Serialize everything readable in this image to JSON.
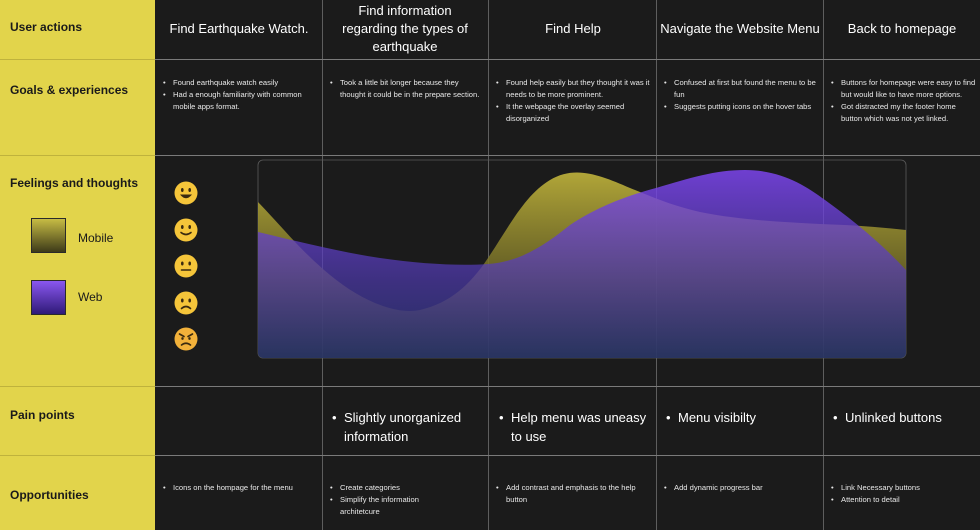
{
  "rows": {
    "user_actions": "User actions",
    "goals": "Goals & experiences",
    "feelings": "Feelings and thoughts",
    "pain_points": "Pain points",
    "opportunities": "Opportunities"
  },
  "legend": {
    "mobile": {
      "label": "Mobile",
      "color": "#6e6a24"
    },
    "web": {
      "label": "Web",
      "color": "#6a3fd6"
    }
  },
  "emotion_scale": [
    "very-happy",
    "happy",
    "neutral",
    "sad",
    "angry"
  ],
  "columns": [
    {
      "action": "Find Earthquake Watch.",
      "goals": [
        "Found earthquake watch easily",
        "Had a enough familiarity with common mobile apps format."
      ],
      "pain_points": [],
      "opportunities": [
        "Icons on the hompage for the menu"
      ]
    },
    {
      "action": "Find information regarding the types of earthquake",
      "goals": [
        "Took a little bit longer because they thought it could be in the prepare section."
      ],
      "pain_points": [
        "Slightly unorganized information"
      ],
      "opportunities": [
        "Create categories",
        "Simplify the information architetcure"
      ]
    },
    {
      "action": "Find Help",
      "goals": [
        "Found help easily but they thought it was it needs to be more prominent.",
        "It the webpage the overlay seemed disorganized"
      ],
      "pain_points": [
        "Help menu was uneasy to use"
      ],
      "opportunities": [
        "Add contrast and emphasis to the help button"
      ]
    },
    {
      "action": "Navigate the Website Menu",
      "goals": [
        "Confused at first but found the menu to be fun",
        "Suggests putting icons on the hover tabs"
      ],
      "pain_points": [
        "Menu visibilty"
      ],
      "opportunities": [
        "Add dynamic progress bar"
      ]
    },
    {
      "action": "Back to homepage",
      "goals": [
        "Buttons for homepage were easy to find but would like to have more options.",
        "Got distracted my the footer home button which was not yet linked."
      ],
      "pain_points": [
        "Unlinked buttons"
      ],
      "opportunities": [
        "Link Necessary buttons",
        "Attention to detail"
      ]
    }
  ]
}
